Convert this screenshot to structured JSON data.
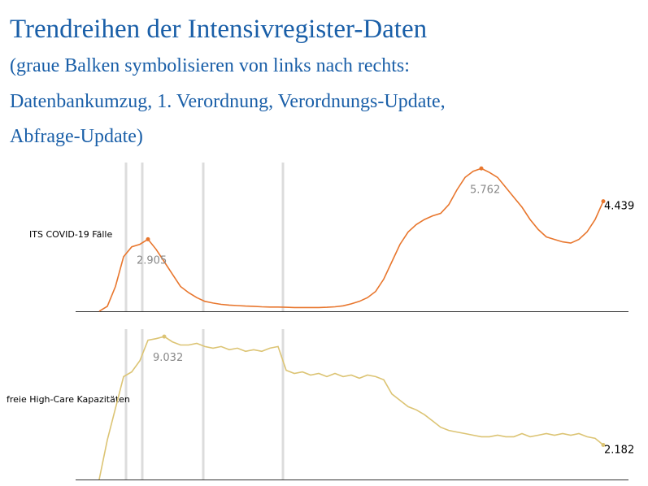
{
  "title": "Trendreihen der Intensivregister-Daten",
  "subtitle": [
    "(graue Balken symbolisieren von links nach rechts:",
    "Datenbankumzug, 1. Verordnung, Verordnungs-Update,",
    "Abfrage-Update)"
  ],
  "chart_data": [
    {
      "type": "line",
      "label": "ITS COVID-19 Fälle",
      "color": "#e8762d",
      "ylim": [
        0,
        6000
      ],
      "values": [
        0,
        200,
        1000,
        2200,
        2600,
        2700,
        2905,
        2500,
        2000,
        1500,
        1000,
        750,
        550,
        400,
        330,
        280,
        250,
        230,
        210,
        200,
        180,
        170,
        170,
        160,
        150,
        150,
        150,
        150,
        160,
        180,
        220,
        300,
        400,
        550,
        800,
        1300,
        2000,
        2700,
        3200,
        3500,
        3700,
        3850,
        3950,
        4300,
        4900,
        5400,
        5650,
        5762,
        5600,
        5400,
        5000,
        4600,
        4200,
        3700,
        3300,
        3000,
        2900,
        2800,
        2750,
        2900,
        3200,
        3700,
        4439
      ],
      "value_labels": [
        null,
        null,
        null,
        null,
        null,
        null,
        "2.905",
        null,
        null,
        null,
        null,
        null,
        null,
        null,
        null,
        null,
        null,
        null,
        null,
        null,
        null,
        null,
        null,
        null,
        null,
        null,
        null,
        null,
        null,
        null,
        null,
        null,
        null,
        null,
        null,
        null,
        null,
        null,
        null,
        null,
        null,
        null,
        null,
        null,
        null,
        null,
        null,
        "5.762",
        null,
        null,
        null,
        null,
        null,
        null,
        null,
        null,
        null,
        null,
        null,
        null,
        null,
        null,
        "4.439"
      ]
    },
    {
      "type": "line",
      "label": "freie High-Care Kapazitäten",
      "color": "#dcc474",
      "ylim": [
        0,
        9500
      ],
      "values": [
        0,
        2500,
        4500,
        6500,
        6800,
        7500,
        8800,
        8900,
        9032,
        8700,
        8500,
        8500,
        8600,
        8400,
        8300,
        8400,
        8200,
        8300,
        8100,
        8200,
        8100,
        8300,
        8400,
        6900,
        6700,
        6800,
        6600,
        6700,
        6500,
        6700,
        6500,
        6600,
        6400,
        6600,
        6500,
        6300,
        5400,
        5000,
        4600,
        4400,
        4100,
        3700,
        3300,
        3100,
        3000,
        2900,
        2800,
        2700,
        2700,
        2800,
        2700,
        2700,
        2900,
        2700,
        2800,
        2900,
        2800,
        2900,
        2800,
        2900,
        2700,
        2600,
        2182
      ],
      "value_labels": [
        null,
        null,
        null,
        null,
        null,
        null,
        null,
        null,
        "9.032",
        null,
        null,
        null,
        null,
        null,
        null,
        null,
        null,
        null,
        null,
        null,
        null,
        null,
        null,
        null,
        null,
        null,
        null,
        null,
        null,
        null,
        null,
        null,
        null,
        null,
        null,
        null,
        null,
        null,
        null,
        null,
        null,
        null,
        null,
        null,
        null,
        null,
        null,
        null,
        null,
        null,
        null,
        null,
        null,
        null,
        null,
        null,
        null,
        null,
        null,
        null,
        null,
        null,
        "2.182"
      ]
    }
  ]
}
